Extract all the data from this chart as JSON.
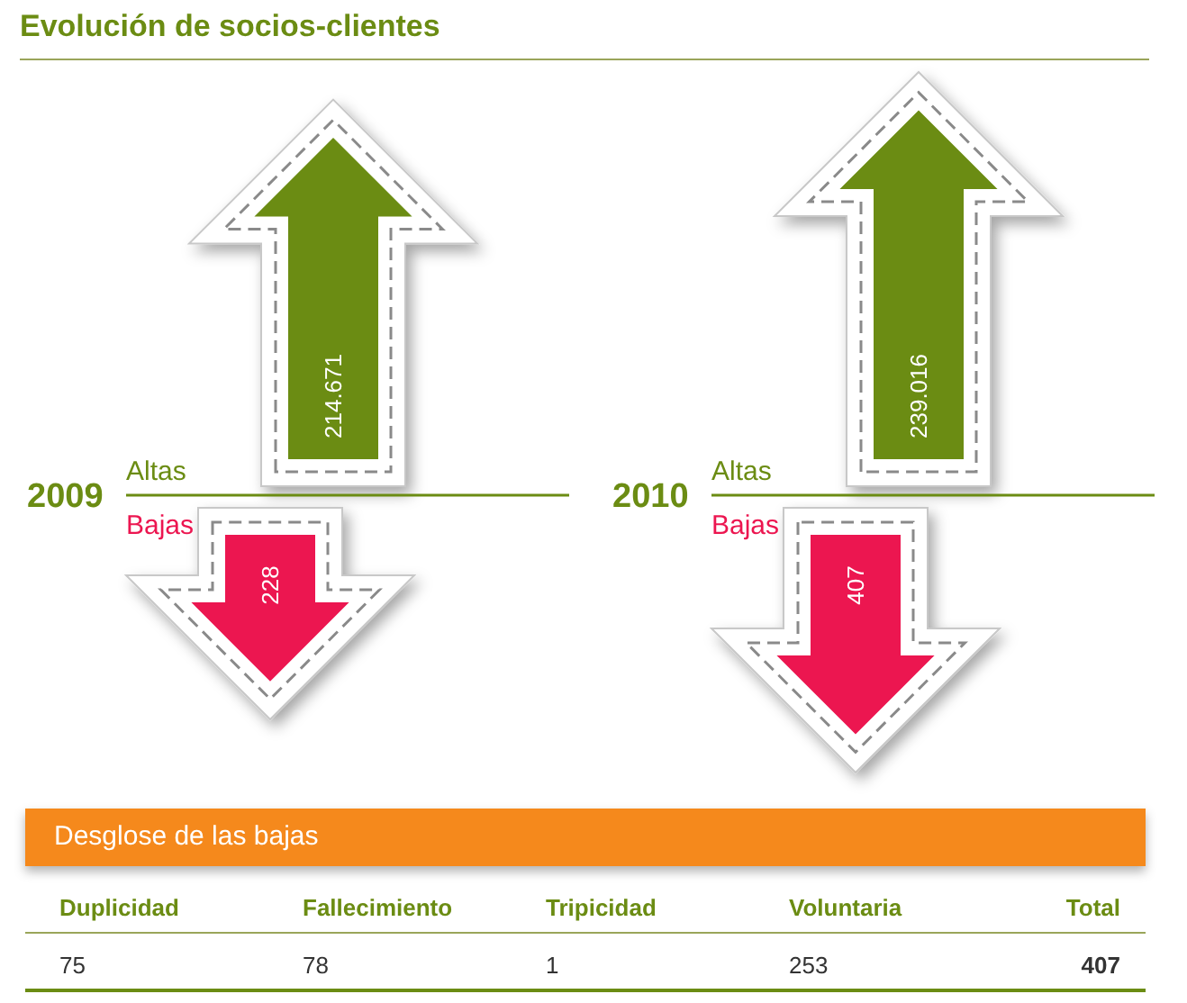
{
  "chart_data": [
    {
      "type": "other",
      "title": "Evolución de socios-clientes",
      "categories": [
        "2009",
        "2010"
      ],
      "series": [
        {
          "name": "Altas",
          "color": "#6b8c13",
          "values": [
            214671,
            239016
          ],
          "value_labels": [
            "214.671",
            "239.016"
          ]
        },
        {
          "name": "Bajas",
          "color": "#ec1650",
          "values": [
            228,
            407
          ],
          "value_labels": [
            "228",
            "407"
          ]
        }
      ]
    },
    {
      "type": "other",
      "title": "Desglose de las bajas",
      "categories": [
        "Duplicidad",
        "Fallecimiento",
        "Tripicidad",
        "Voluntaria",
        "Total"
      ],
      "values": [
        75,
        78,
        1,
        253,
        407
      ],
      "data_labels": true
    }
  ]
}
